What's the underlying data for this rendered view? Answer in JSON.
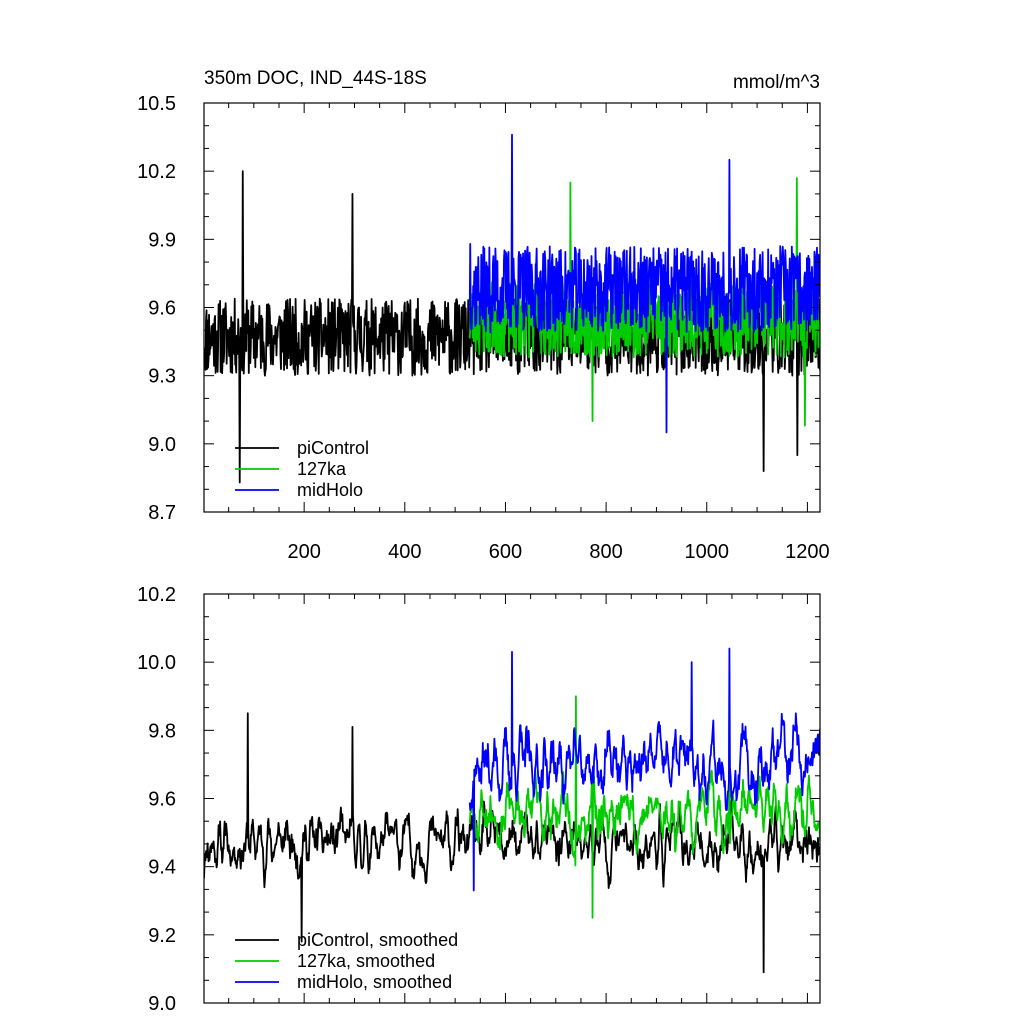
{
  "chart_data": [
    {
      "type": "line",
      "title": "350m DOC, IND_44S-18S",
      "units": "mmol/m^3",
      "xlim": [
        1,
        1225
      ],
      "ylim": [
        8.7,
        10.5
      ],
      "x_ticks": [
        200,
        400,
        600,
        800,
        1000,
        1200
      ],
      "y_ticks": [
        "8.7",
        "9.0",
        "9.3",
        "9.6",
        "9.9",
        "10.2",
        "10.5"
      ],
      "x_tick_labels_shown": true,
      "grid": false,
      "legend_position": "bottom-left",
      "series": [
        {
          "name": "piControl",
          "color": "#000000",
          "x_range": [
            1,
            1225
          ],
          "mean": 9.47,
          "amplitude": 0.17,
          "seed": 11,
          "spikes": [
            [
              78,
              10.2
            ],
            [
              72,
              8.83
            ],
            [
              296,
              10.1
            ],
            [
              613,
              9.95
            ],
            [
              1113,
              8.88
            ],
            [
              1180,
              8.95
            ]
          ]
        },
        {
          "name": "127ka",
          "color": "#00cc00",
          "x_range": [
            529,
            1225
          ],
          "mean": 9.55,
          "amplitude": 0.17,
          "seed": 23,
          "spikes": [
            [
              1179,
              10.17
            ],
            [
              729,
              10.15
            ],
            [
              773,
              9.1
            ],
            [
              1195,
              9.08
            ]
          ]
        },
        {
          "name": "midHolo",
          "color": "#0000ff",
          "x_range": [
            529,
            1225
          ],
          "mean": 9.68,
          "amplitude": 0.19,
          "seed": 37,
          "spikes": [
            [
              613,
              10.36
            ],
            [
              1045,
              10.25
            ],
            [
              920,
              9.05
            ],
            [
              530,
              9.88
            ]
          ]
        }
      ]
    },
    {
      "type": "line",
      "title": "",
      "xlim": [
        1,
        1225
      ],
      "ylim": [
        9.0,
        10.2
      ],
      "x_ticks": [
        200,
        400,
        600,
        800,
        1000,
        1200
      ],
      "y_ticks": [
        "9.0",
        "9.2",
        "9.4",
        "9.6",
        "9.8",
        "10.0",
        "10.2"
      ],
      "x_tick_labels_shown": false,
      "grid": false,
      "legend_position": "bottom-left",
      "series": [
        {
          "name": "piControl, smoothed",
          "color": "#000000",
          "x_range": [
            1,
            1225
          ],
          "mean": 9.47,
          "amplitude": 0.09,
          "seed": 11,
          "spikes": [
            [
              88,
              9.85
            ],
            [
              296,
              9.81
            ],
            [
              1113,
              9.09
            ],
            [
              195,
              9.18
            ]
          ]
        },
        {
          "name": "127ka, smoothed",
          "color": "#00cc00",
          "x_range": [
            529,
            1225
          ],
          "mean": 9.56,
          "amplitude": 0.1,
          "seed": 23,
          "spikes": [
            [
              1045,
              9.97
            ],
            [
              740,
              9.9
            ],
            [
              773,
              9.25
            ]
          ]
        },
        {
          "name": "midHolo, smoothed",
          "color": "#0000ff",
          "x_range": [
            529,
            1225
          ],
          "mean": 9.7,
          "amplitude": 0.11,
          "seed": 37,
          "spikes": [
            [
              613,
              10.03
            ],
            [
              1045,
              10.04
            ],
            [
              970,
              10.0
            ],
            [
              537,
              9.33
            ]
          ]
        }
      ]
    }
  ]
}
